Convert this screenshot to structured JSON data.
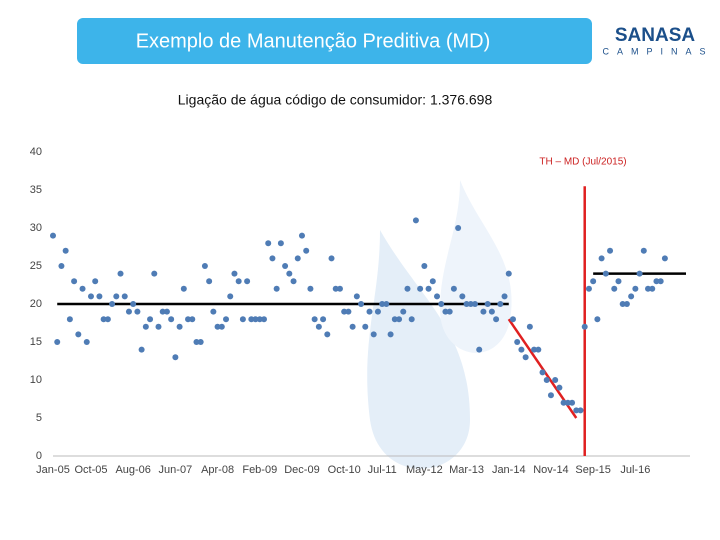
{
  "header": {
    "title": "Exemplo de Manutenção Preditiva (MD)"
  },
  "logo": {
    "name": "SANASA",
    "subtitle": "CAMPINAS"
  },
  "chart_data": {
    "type": "scatter",
    "title": "Ligação de água código de consumidor: 1.376.698",
    "categories": [
      "Jan-05",
      null,
      null,
      null,
      null,
      null,
      null,
      null,
      null,
      "Oct-05",
      null,
      null,
      null,
      null,
      null,
      null,
      null,
      null,
      null,
      "Aug-06",
      null,
      null,
      null,
      null,
      null,
      null,
      null,
      null,
      null,
      "Jun-07",
      null,
      null,
      null,
      null,
      null,
      null,
      null,
      null,
      null,
      "Apr-08",
      null,
      null,
      null,
      null,
      null,
      null,
      null,
      null,
      null,
      "Feb-09",
      null,
      null,
      null,
      null,
      null,
      null,
      null,
      null,
      null,
      "Dec-09",
      null,
      null,
      null,
      null,
      null,
      null,
      null,
      null,
      null,
      "Oct-10",
      null,
      null,
      null,
      null,
      null,
      null,
      null,
      null,
      "Jul-11",
      null,
      null,
      null,
      null,
      null,
      null,
      null,
      null,
      null,
      "May-12",
      null,
      null,
      null,
      null,
      null,
      null,
      null,
      null,
      null,
      "Mar-13",
      null,
      null,
      null,
      null,
      null,
      null,
      null,
      null,
      null,
      "Jan-14",
      null,
      null,
      null,
      null,
      null,
      null,
      null,
      null,
      null,
      "Nov-14",
      null,
      null,
      null,
      null,
      null,
      null,
      null,
      null,
      null,
      "Sep-15",
      null,
      null,
      null,
      null,
      null,
      null,
      null,
      null,
      null,
      "Jul-16",
      null,
      null,
      null,
      null,
      null,
      null,
      null
    ],
    "values": [
      29,
      15,
      25,
      27,
      18,
      23,
      16,
      22,
      15,
      21,
      23,
      21,
      18,
      18,
      20,
      21,
      24,
      21,
      19,
      20,
      19,
      14,
      17,
      18,
      24,
      17,
      19,
      19,
      18,
      13,
      17,
      22,
      18,
      18,
      15,
      15,
      25,
      23,
      19,
      17,
      17,
      18,
      21,
      24,
      23,
      18,
      23,
      18,
      18,
      18,
      18,
      28,
      26,
      22,
      28,
      25,
      24,
      23,
      26,
      29,
      27,
      22,
      18,
      17,
      18,
      16,
      26,
      22,
      22,
      19,
      19,
      17,
      21,
      20,
      17,
      19,
      16,
      19,
      20,
      20,
      16,
      18,
      18,
      19,
      22,
      18,
      31,
      22,
      25,
      22,
      23,
      21,
      20,
      19,
      19,
      22,
      30,
      21,
      20,
      20,
      20,
      14,
      19,
      20,
      19,
      18,
      20,
      21,
      24,
      18,
      15,
      14,
      13,
      17,
      14,
      14,
      11,
      10,
      8,
      10,
      9,
      7,
      7,
      7,
      6,
      6,
      17,
      22,
      23,
      18,
      26,
      24,
      27,
      22,
      23,
      20,
      20,
      21,
      22,
      24,
      27,
      22,
      22,
      23,
      23,
      26
    ],
    "color": "#4f7cb5",
    "ylim": [
      0,
      40
    ],
    "yticks": [
      0,
      5,
      10,
      15,
      20,
      25,
      30,
      35,
      40
    ],
    "reference_lines": [
      {
        "x": [
          1,
          108
        ],
        "values": [
          20,
          20
        ],
        "color": "#000000"
      },
      {
        "x": [
          128,
          150
        ],
        "values": [
          24,
          24
        ],
        "color": "#000000"
      },
      {
        "x": [
          108,
          124
        ],
        "values": [
          18,
          5
        ],
        "color": "#e02020"
      },
      {
        "x": [
          126,
          126
        ],
        "values": [
          35.5,
          0
        ],
        "color": "#e02020"
      }
    ],
    "annotation": {
      "text": "TH – MD (Jul/2015)",
      "color": "#cc2222"
    }
  }
}
